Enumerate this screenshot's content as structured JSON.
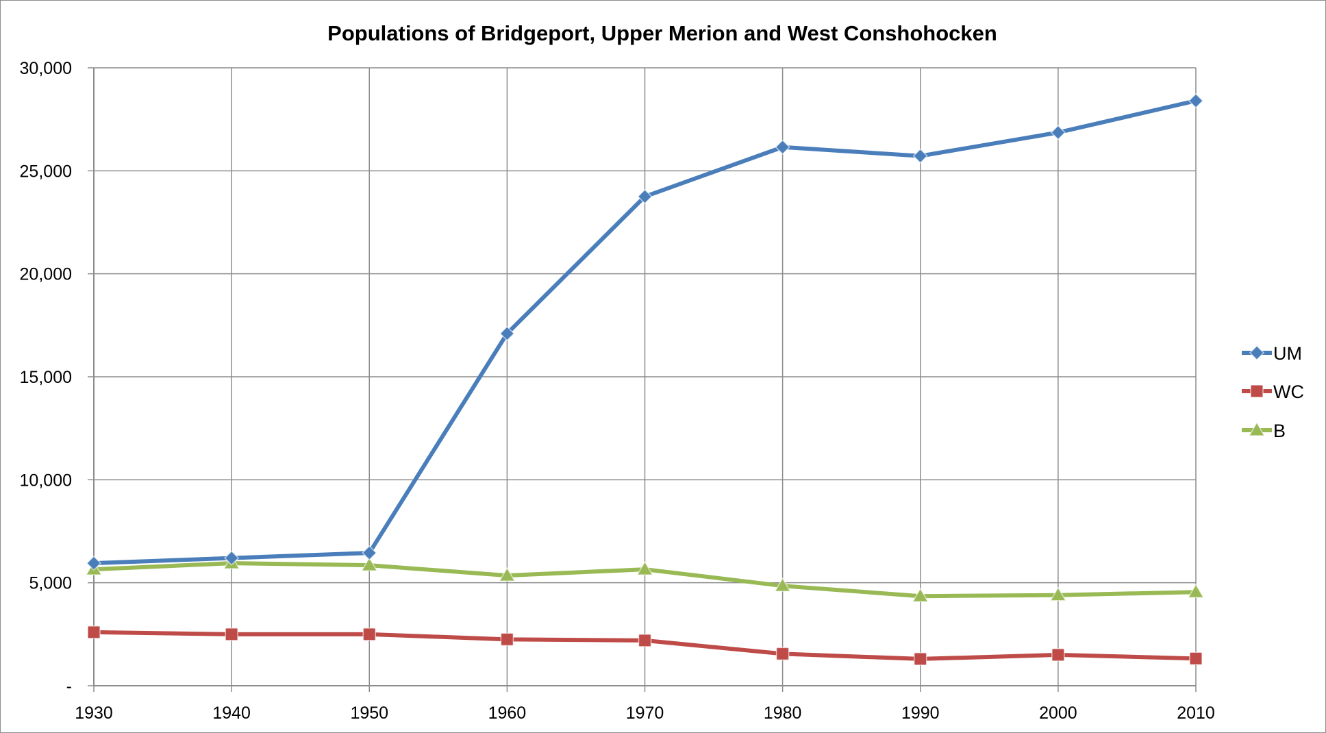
{
  "chart_data": {
    "type": "line",
    "title": "Populations of Bridgeport, Upper Merion and West Conshohocken",
    "xlabel": "",
    "ylabel": "",
    "x": [
      "1930",
      "1940",
      "1950",
      "1960",
      "1970",
      "1980",
      "1990",
      "2000",
      "2010"
    ],
    "ylim": [
      0,
      30000
    ],
    "yticks": [
      0,
      5000,
      10000,
      15000,
      20000,
      25000,
      30000
    ],
    "ytick_labels": [
      "-",
      "5,000",
      "10,000",
      "15,000",
      "20,000",
      "25,000",
      "30,000"
    ],
    "grid": true,
    "legend_position": "right",
    "series": [
      {
        "name": "UM",
        "color": "#4a7ebb",
        "marker": "diamond",
        "values": [
          5950,
          6200,
          6450,
          17100,
          23750,
          26150,
          25720,
          26860,
          28400
        ]
      },
      {
        "name": "WC",
        "color": "#be4b48",
        "marker": "square",
        "values": [
          2600,
          2500,
          2500,
          2250,
          2200,
          1550,
          1300,
          1500,
          1320
        ]
      },
      {
        "name": "B",
        "color": "#98b954",
        "marker": "triangle",
        "values": [
          5650,
          5950,
          5850,
          5350,
          5650,
          4850,
          4350,
          4400,
          4550
        ]
      }
    ]
  }
}
